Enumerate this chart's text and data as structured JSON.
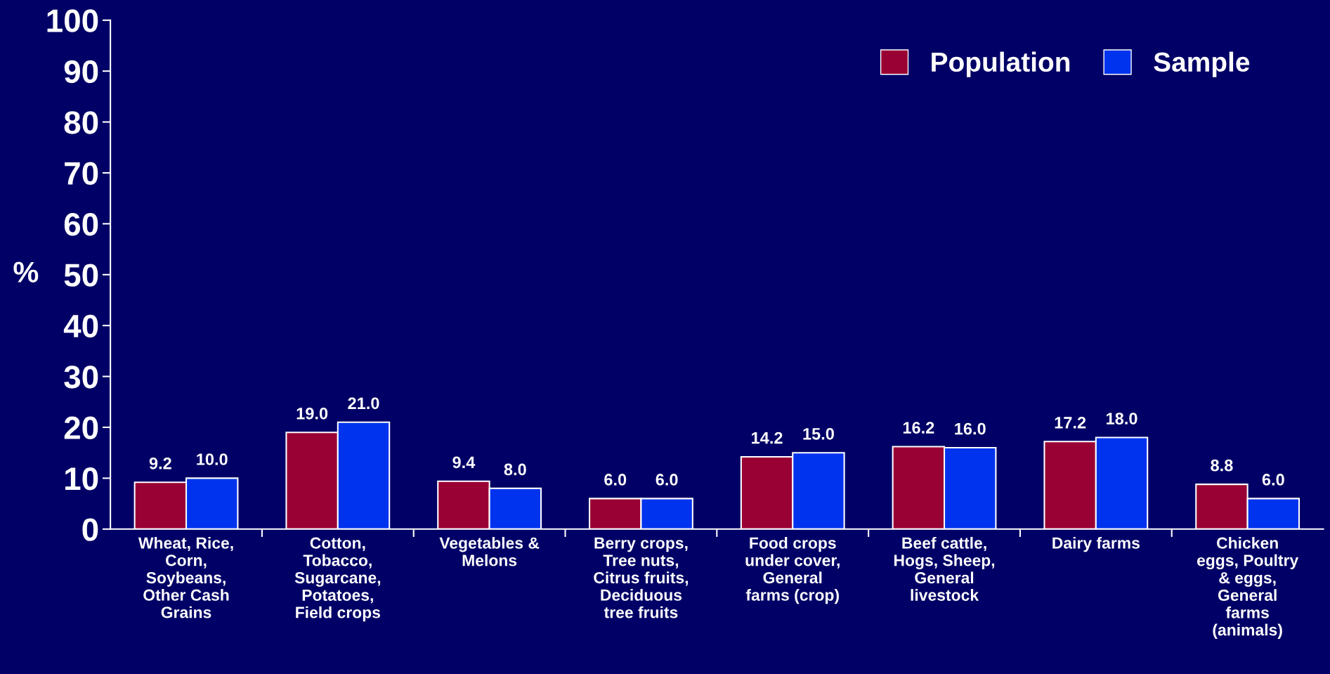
{
  "chart_data": {
    "type": "bar",
    "ylabel": "%",
    "categories": [
      "Wheat, Rice,\nCorn,\nSoybeans,\nOther Cash\nGrains",
      "Cotton,\nTobacco,\nSugarcane,\nPotatoes,\nField crops",
      "Vegetables &\nMelons",
      "Berry crops,\nTree nuts,\nCitrus fruits,\nDeciduous\ntree fruits",
      "Food crops\nunder cover,\nGeneral\nfarms (crop)",
      "Beef cattle,\nHogs, Sheep,\nGeneral\nlivestock",
      "Dairy farms",
      "Chicken\neggs, Poultry\n& eggs,\nGeneral\nfarms\n(animals)"
    ],
    "series": [
      {
        "name": "Population",
        "color": "#990033",
        "values": [
          9.2,
          19.0,
          9.4,
          6.0,
          14.2,
          16.2,
          17.2,
          8.8
        ],
        "value_labels": [
          "9.2",
          "19.0",
          "9.4",
          "6.0",
          "14.2",
          "16.2",
          "17.2",
          "8.8"
        ]
      },
      {
        "name": "Sample",
        "color": "#0033ee",
        "values": [
          10.0,
          21.0,
          8.0,
          6.0,
          15.0,
          16.0,
          18.0,
          6.0
        ],
        "value_labels": [
          "10.0",
          "21.0",
          "8.0",
          "6.0",
          "15.0",
          "16.0",
          "18.0",
          "6.0"
        ]
      }
    ],
    "ylim": [
      0,
      100
    ],
    "yticks": [
      0,
      10,
      20,
      30,
      40,
      50,
      60,
      70,
      80,
      90,
      100
    ],
    "legend": "top right",
    "grid": false
  }
}
